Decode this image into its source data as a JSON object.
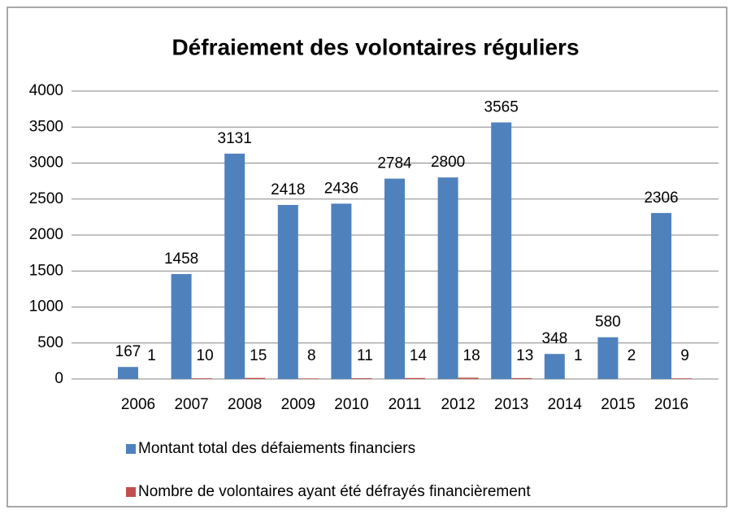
{
  "chart_data": {
    "type": "bar",
    "title": "Défraiement des volontaires réguliers",
    "categories": [
      "2006",
      "2007",
      "2008",
      "2009",
      "2010",
      "2011",
      "2012",
      "2013",
      "2014",
      "2015",
      "2016"
    ],
    "series": [
      {
        "name": "Montant total des défaiements financiers",
        "color": "#4f81bd",
        "values": [
          167,
          1458,
          3131,
          2418,
          2436,
          2784,
          2800,
          3565,
          348,
          580,
          2306
        ]
      },
      {
        "name": "Nombre de volontaires ayant été défrayés financièrement",
        "color": "#c0504d",
        "values": [
          1,
          10,
          15,
          8,
          11,
          14,
          18,
          13,
          1,
          2,
          9
        ]
      }
    ],
    "ylim": [
      0,
      4000
    ],
    "yticks": [
      0,
      500,
      1000,
      1500,
      2000,
      2500,
      3000,
      3500,
      4000
    ],
    "grid": true,
    "legend": "bottom"
  }
}
